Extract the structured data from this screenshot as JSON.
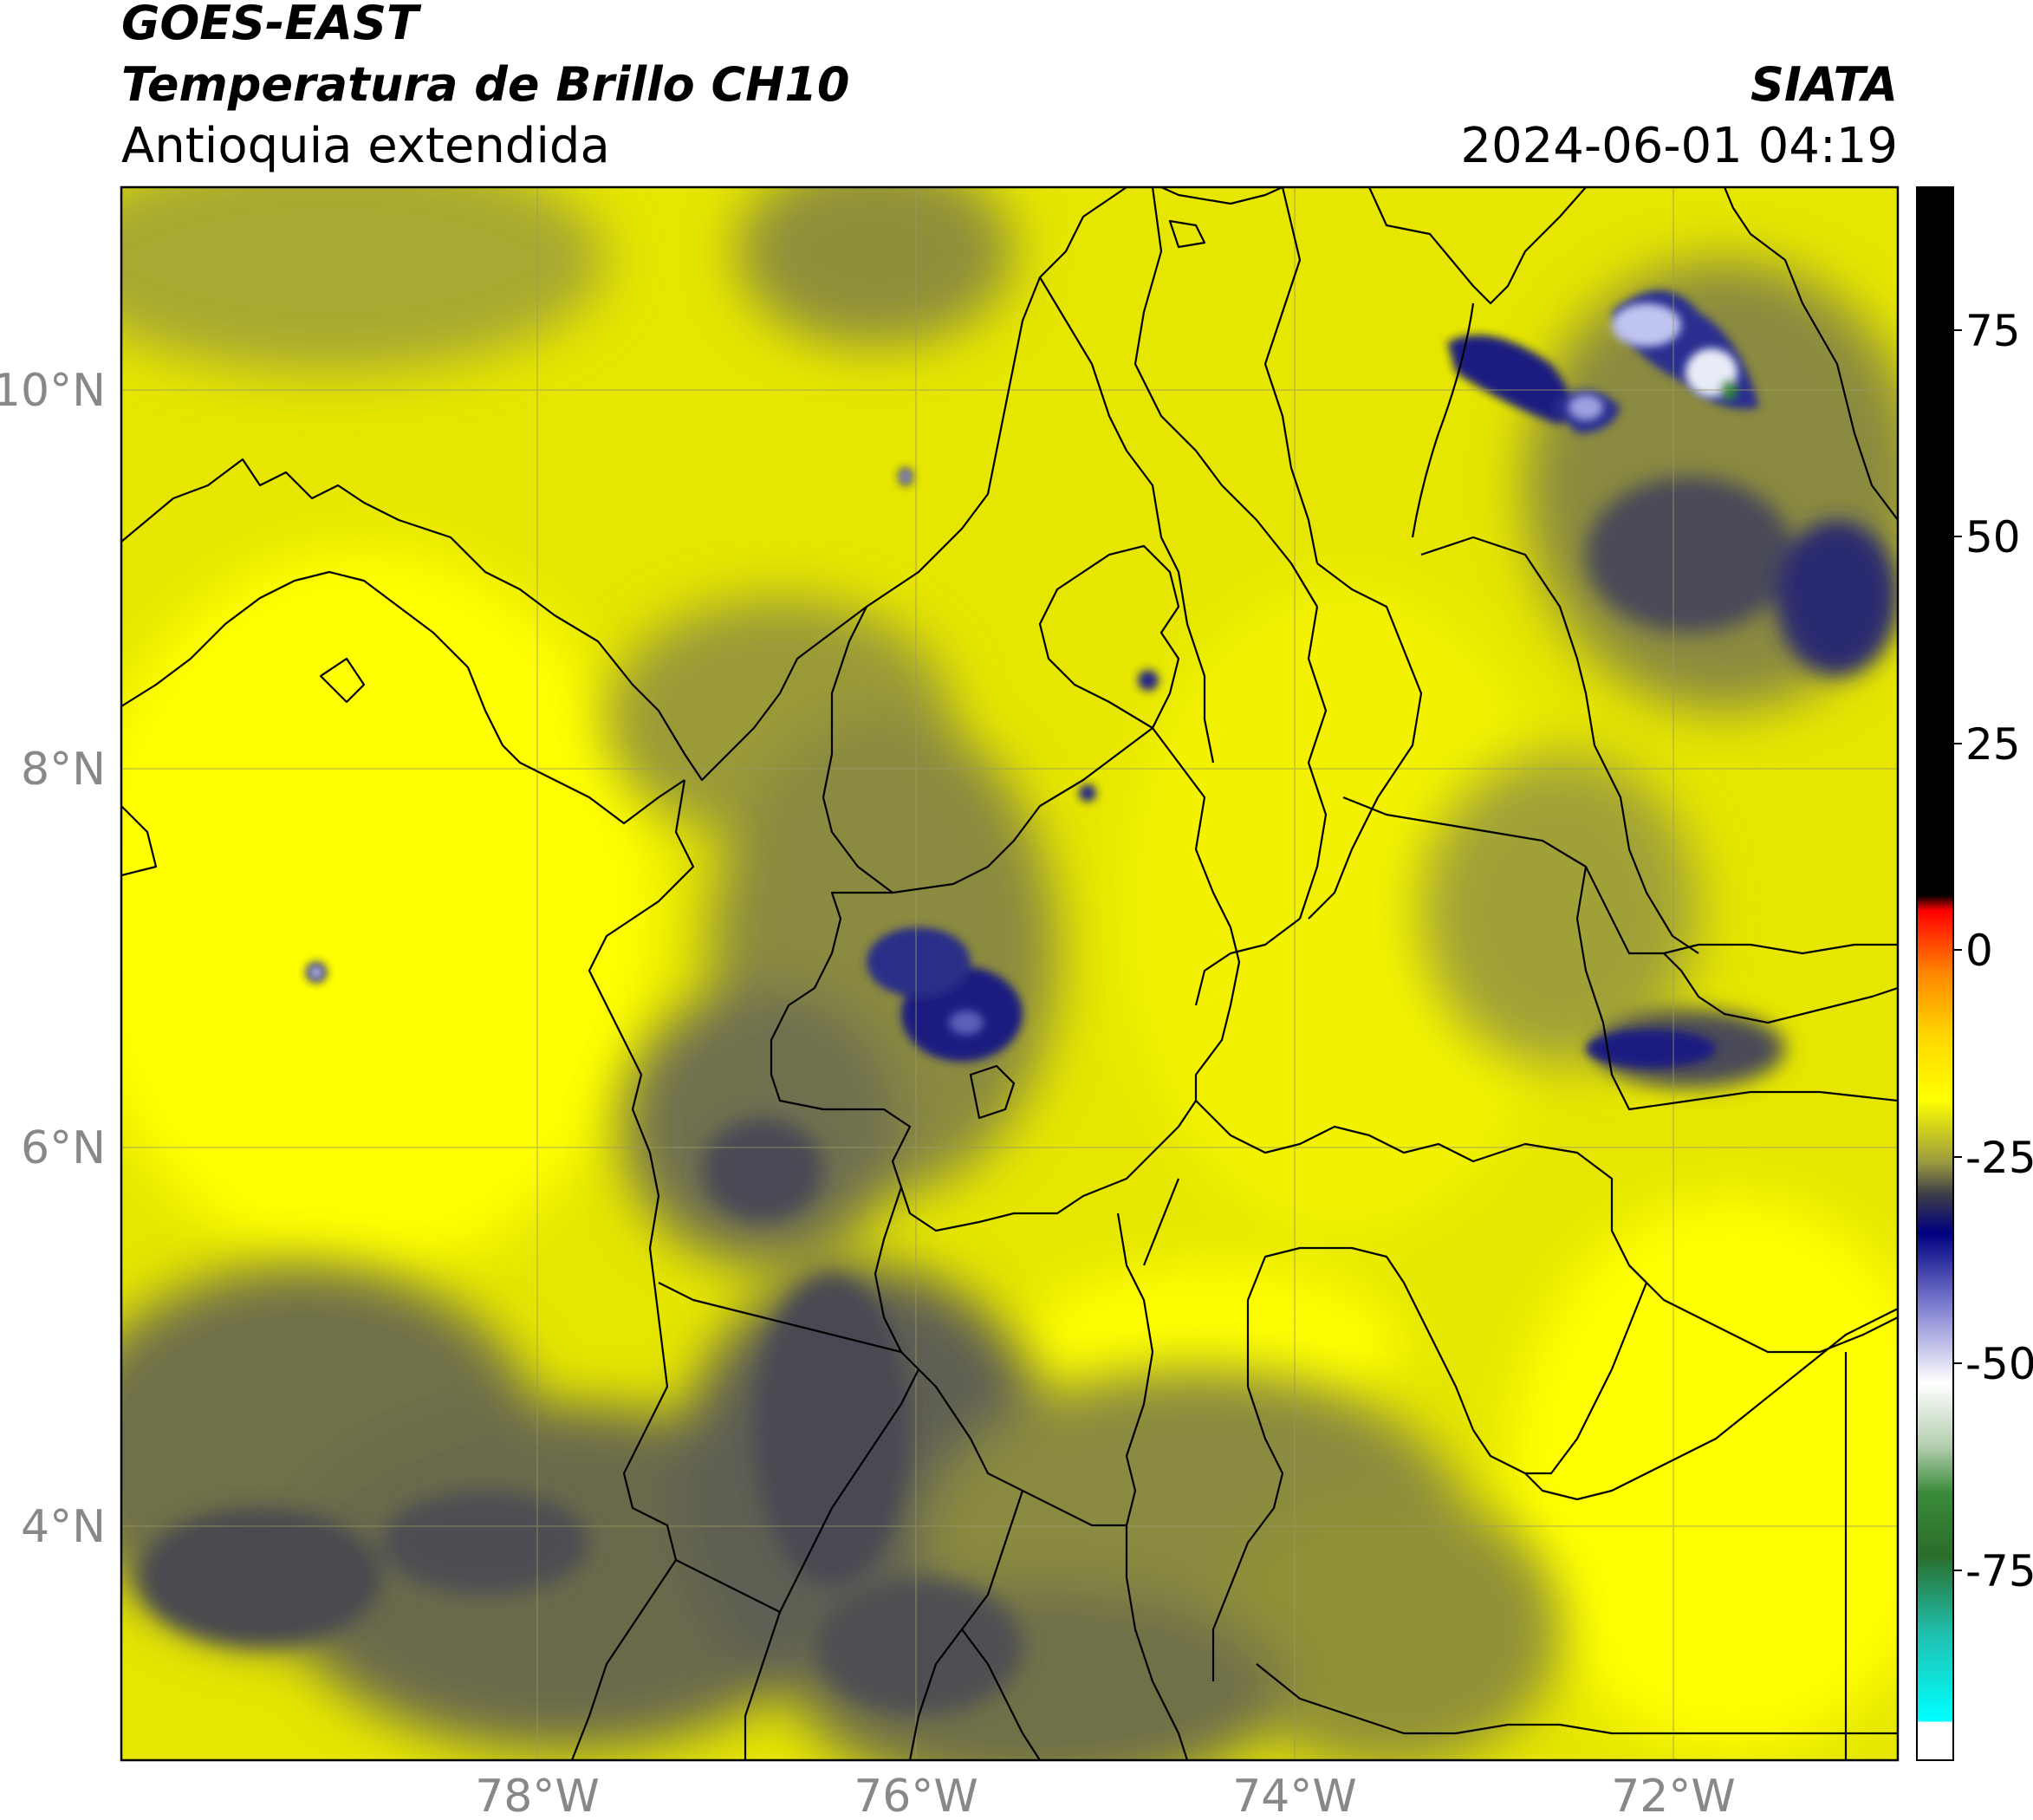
{
  "header": {
    "satellite": "GOES-EAST",
    "product": "Temperatura de Brillo CH10",
    "region": "Antioquia extendida",
    "organization": "SIATA",
    "timestamp": "2024-06-01 04:19"
  },
  "map": {
    "lat_ticks": [
      "10°N",
      "8°N",
      "6°N",
      "4°N"
    ],
    "lon_ticks": [
      "78°W",
      "76°W",
      "74°W",
      "72°W"
    ],
    "extent": {
      "lon_min": -80.2,
      "lon_max": -70.8,
      "lat_min": 2.85,
      "lat_max": 11.05
    },
    "gridlines": true,
    "background_color": "#e6e600",
    "cold_cloud_color": "#101a70",
    "mid_cloud_color": "#55554f"
  },
  "colorbar": {
    "ticks": [
      "75",
      "50",
      "25",
      "0",
      "-25",
      "-50",
      "-75"
    ],
    "units_range": [
      -93,
      92
    ],
    "stops": [
      {
        "value": 92,
        "color": "#000000"
      },
      {
        "value": 8,
        "color": "#000000"
      },
      {
        "value": 7.9,
        "color": "#ff0000"
      },
      {
        "value": 0,
        "color": "#ff8800"
      },
      {
        "value": -8,
        "color": "#ffd700"
      },
      {
        "value": -14,
        "color": "#ffff00"
      },
      {
        "value": -20,
        "color": "#9a9a40"
      },
      {
        "value": -25,
        "color": "#3e3e48"
      },
      {
        "value": -30,
        "color": "#000080"
      },
      {
        "value": -40,
        "color": "#7b7bd0"
      },
      {
        "value": -48,
        "color": "#ffffff"
      },
      {
        "value": -55,
        "color": "#b5cfb0"
      },
      {
        "value": -62,
        "color": "#3a8a3a"
      },
      {
        "value": -72,
        "color": "#2a6e2a"
      },
      {
        "value": -80,
        "color": "#20c0b0"
      },
      {
        "value": -88.9,
        "color": "#00ffff"
      },
      {
        "value": -89,
        "color": "#ffffff"
      },
      {
        "value": -93,
        "color": "#ffffff"
      }
    ]
  }
}
